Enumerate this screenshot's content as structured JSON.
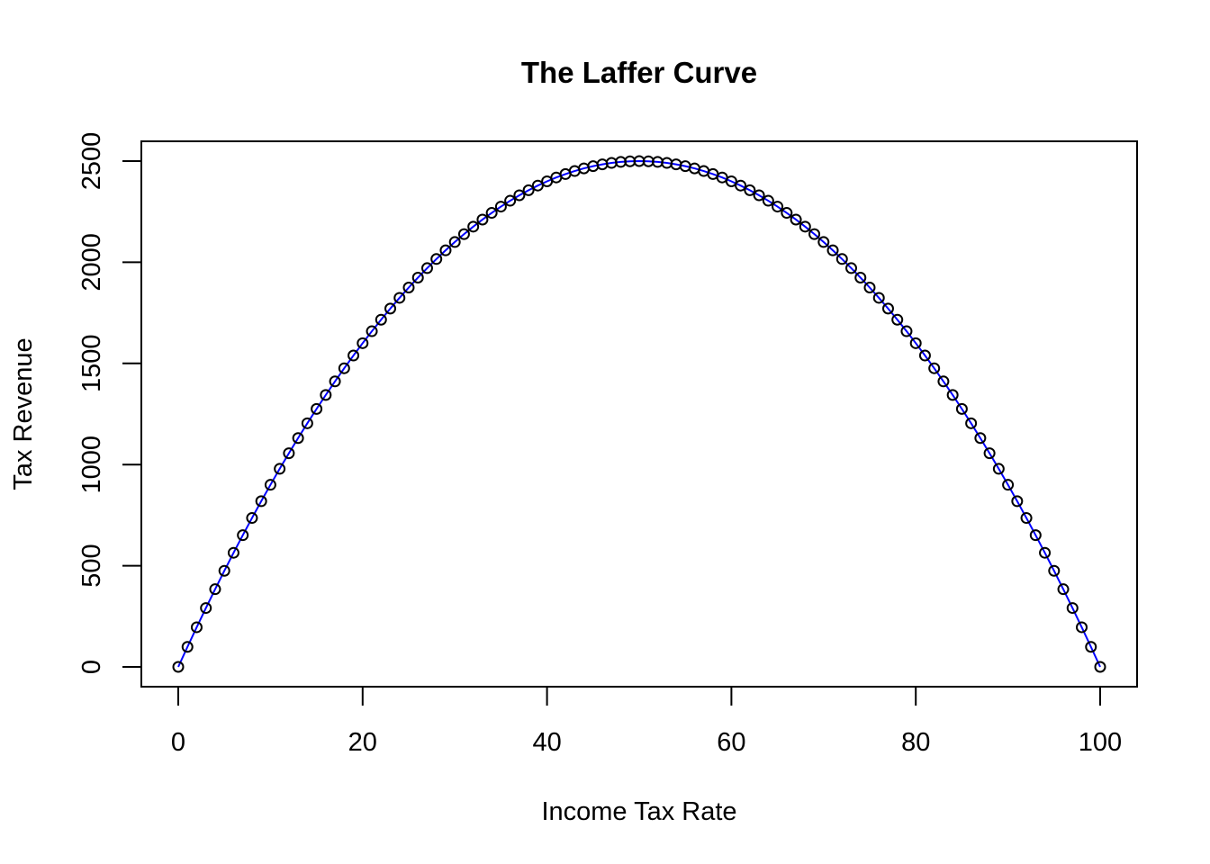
{
  "chart_data": {
    "type": "line",
    "title": "The Laffer Curve",
    "xlabel": "Income Tax Rate",
    "ylabel": "Tax Revenue",
    "xlim": [
      0,
      100
    ],
    "ylim": [
      0,
      2500
    ],
    "x_ticks": [
      "0",
      "20",
      "40",
      "60",
      "80",
      "100"
    ],
    "y_ticks": [
      "0",
      "500",
      "1000",
      "1500",
      "2000",
      "2500"
    ],
    "grid": false,
    "legend": "none",
    "line_color": "#0000ff",
    "marker": "open-circle",
    "marker_color": "#000000",
    "series": [
      {
        "x": [
          0,
          1,
          2,
          3,
          4,
          5,
          6,
          7,
          8,
          9,
          10,
          11,
          12,
          13,
          14,
          15,
          16,
          17,
          18,
          19,
          20,
          21,
          22,
          23,
          24,
          25,
          26,
          27,
          28,
          29,
          30,
          31,
          32,
          33,
          34,
          35,
          36,
          37,
          38,
          39,
          40,
          41,
          42,
          43,
          44,
          45,
          46,
          47,
          48,
          49,
          50,
          51,
          52,
          53,
          54,
          55,
          56,
          57,
          58,
          59,
          60,
          61,
          62,
          63,
          64,
          65,
          66,
          67,
          68,
          69,
          70,
          71,
          72,
          73,
          74,
          75,
          76,
          77,
          78,
          79,
          80,
          81,
          82,
          83,
          84,
          85,
          86,
          87,
          88,
          89,
          90,
          91,
          92,
          93,
          94,
          95,
          96,
          97,
          98,
          99,
          100
        ],
        "y": [
          0,
          99,
          196,
          291,
          384,
          475,
          564,
          651,
          736,
          819,
          900,
          979,
          1056,
          1131,
          1204,
          1275,
          1344,
          1411,
          1476,
          1539,
          1600,
          1659,
          1716,
          1771,
          1824,
          1875,
          1924,
          1971,
          2016,
          2059,
          2100,
          2139,
          2176,
          2211,
          2244,
          2275,
          2304,
          2331,
          2356,
          2379,
          2400,
          2419,
          2436,
          2451,
          2464,
          2475,
          2484,
          2491,
          2496,
          2499,
          2500,
          2499,
          2496,
          2491,
          2484,
          2475,
          2464,
          2451,
          2436,
          2419,
          2400,
          2379,
          2356,
          2331,
          2304,
          2275,
          2244,
          2211,
          2176,
          2139,
          2100,
          2059,
          2016,
          1971,
          1924,
          1875,
          1824,
          1771,
          1716,
          1659,
          1600,
          1539,
          1476,
          1411,
          1344,
          1275,
          1204,
          1131,
          1056,
          979,
          900,
          819,
          736,
          651,
          564,
          475,
          384,
          291,
          196,
          99,
          0
        ]
      }
    ]
  }
}
